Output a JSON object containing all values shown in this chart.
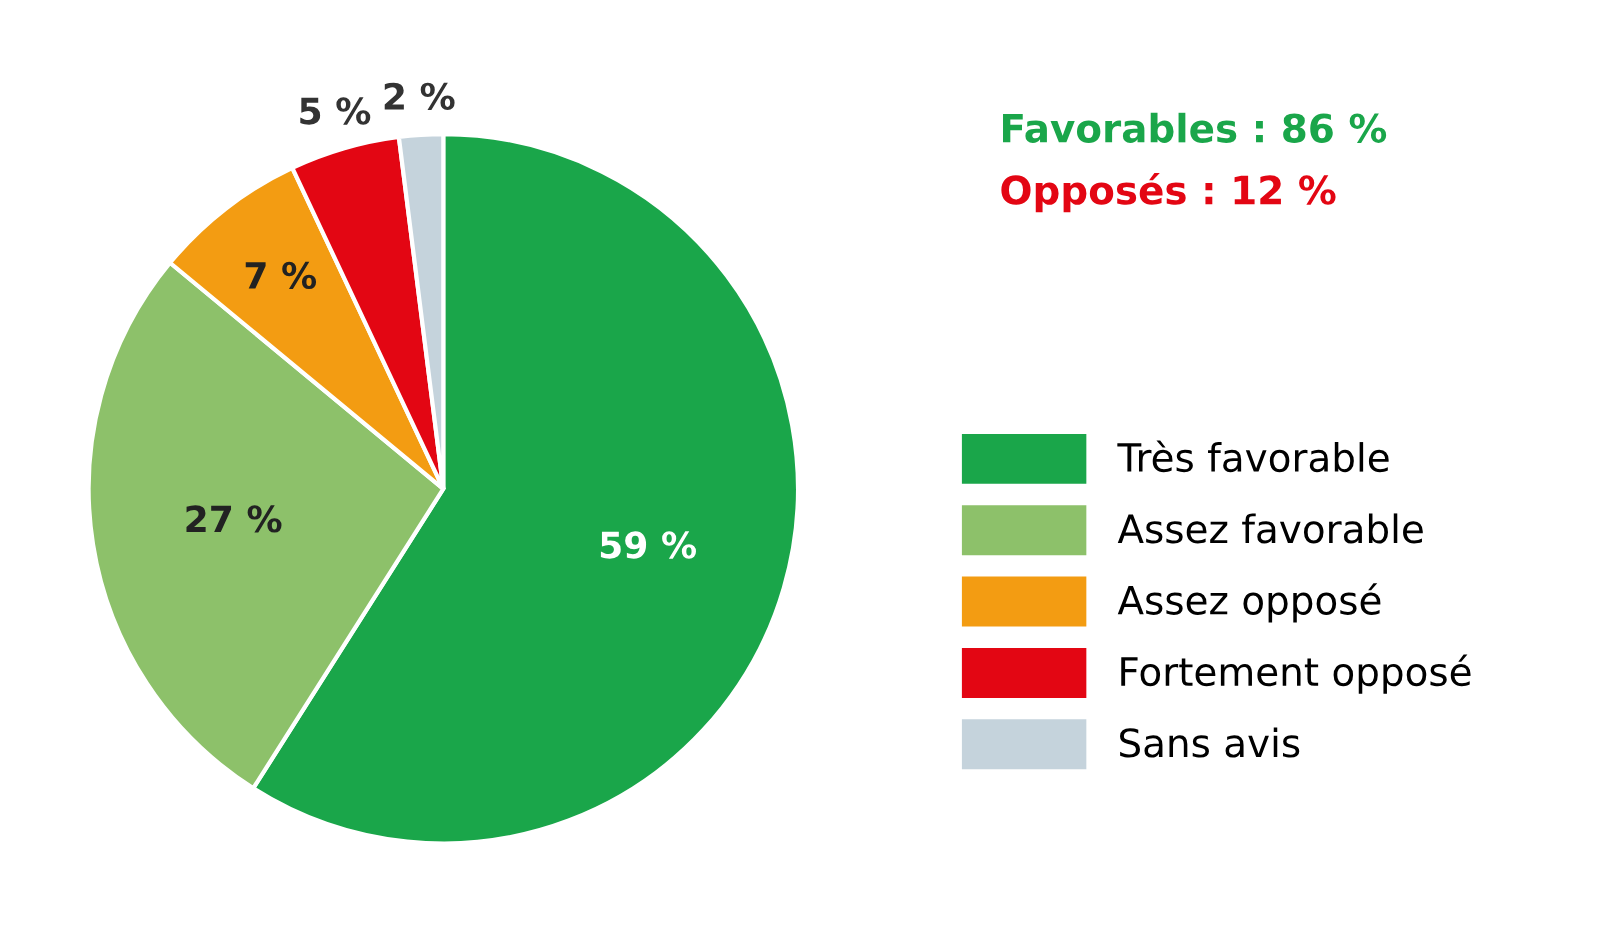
{
  "chart_data": {
    "type": "pie",
    "categories": [
      "Très favorable",
      "Assez favorable",
      "Assez opposé",
      "Fortement opposé",
      "Sans avis"
    ],
    "values": [
      59,
      27,
      7,
      5,
      2
    ],
    "value_labels": [
      "59 %",
      "27 %",
      "7 %",
      "5 %",
      "2 %"
    ],
    "colors": [
      "#1aa64a",
      "#8dc16a",
      "#f39c12",
      "#e30613",
      "#c5d3dc"
    ],
    "annotations": [
      "Favorables : 86 %",
      "Opposés : 12 %"
    ],
    "legend": "right"
  }
}
